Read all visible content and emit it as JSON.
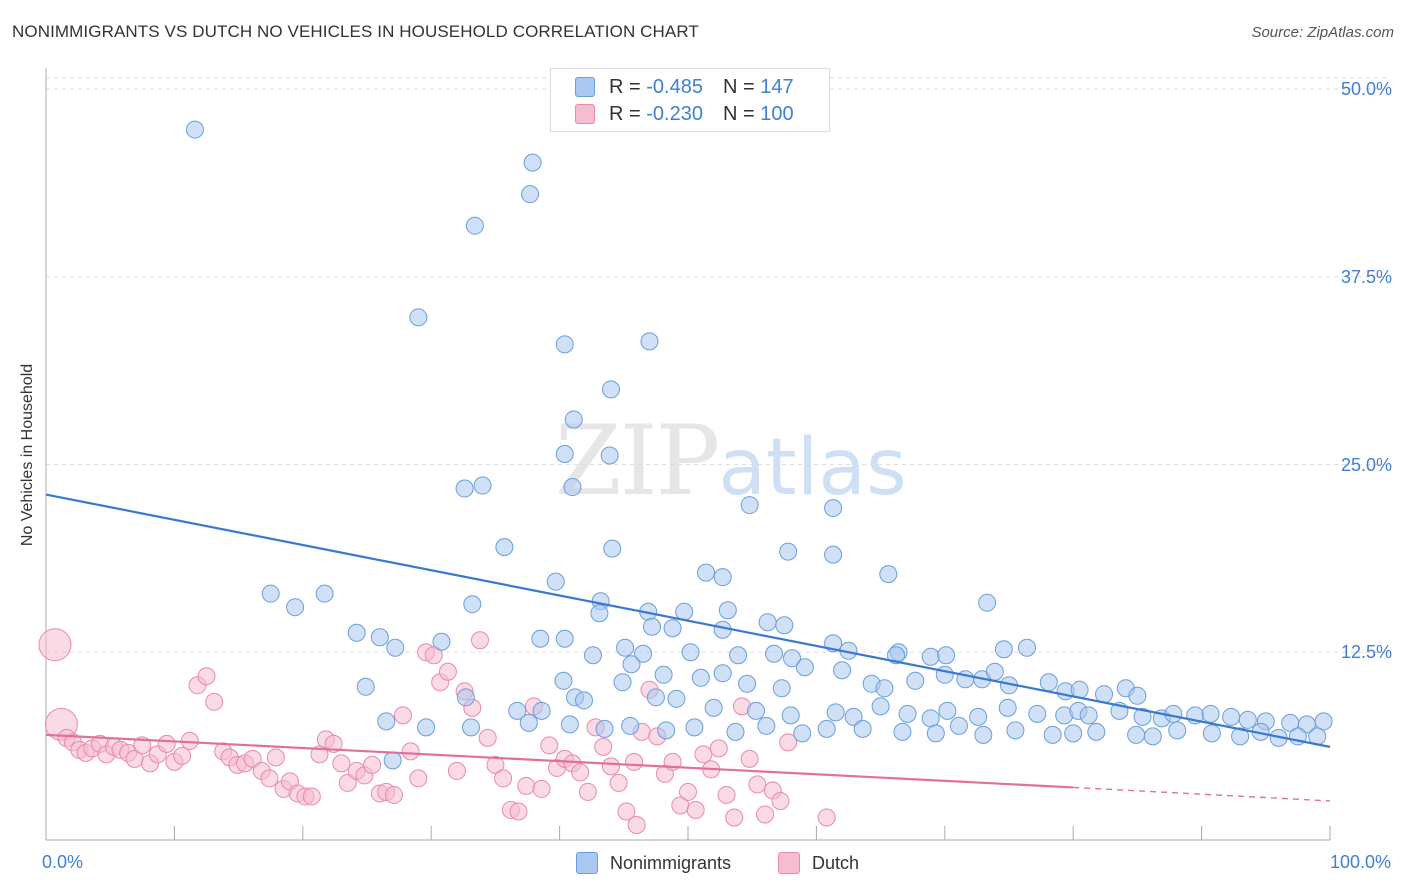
{
  "title": "NONIMMIGRANTS VS DUTCH NO VEHICLES IN HOUSEHOLD CORRELATION CHART",
  "source": "Source: ZipAtlas.com",
  "watermark": {
    "zip": "ZIP",
    "atlas": "atlas"
  },
  "legend_top": [
    {
      "r_label": "R = ",
      "r_value": "-0.485",
      "n_label": "N = ",
      "n_value": "147"
    },
    {
      "r_label": "R = ",
      "r_value": "-0.230",
      "n_label": "N = ",
      "n_value": "100"
    }
  ],
  "colors": {
    "blue_fill": "#aac8f0",
    "blue_stroke": "#6a9edc",
    "blue_line": "#3a78d0",
    "pink_fill": "#f6bcd0",
    "pink_stroke": "#e98aaa",
    "pink_line": "#e0709a",
    "grid": "#dddddd",
    "tick_text": "#3f7fd4"
  },
  "chart_data": {
    "type": "scatter",
    "title": "NONIMMIGRANTS VS DUTCH NO VEHICLES IN HOUSEHOLD CORRELATION CHART",
    "xlabel": "",
    "ylabel": "No Vehicles in Household",
    "xlim": [
      0,
      100
    ],
    "ylim": [
      0,
      51
    ],
    "x_tick_labels": [
      "0.0%",
      "100.0%"
    ],
    "y_ticks": [
      12.5,
      25.0,
      37.5,
      50.0
    ],
    "y_tick_labels": [
      "12.5%",
      "25.0%",
      "37.5%",
      "50.0%"
    ],
    "grid": true,
    "legend_position": "top-center",
    "series": [
      {
        "name": "Nonimmigrants",
        "color": "#aac8f0",
        "trend": {
          "x": [
            0,
            100
          ],
          "y": [
            23.0,
            6.2
          ]
        },
        "points": [
          [
            11.6,
            47.3
          ],
          [
            37.9,
            45.1
          ],
          [
            37.7,
            43.0
          ],
          [
            33.4,
            40.9
          ],
          [
            29.0,
            34.8
          ],
          [
            40.4,
            33.0
          ],
          [
            47.0,
            33.2
          ],
          [
            44.0,
            30.0
          ],
          [
            41.1,
            28.0
          ],
          [
            43.9,
            25.6
          ],
          [
            40.4,
            25.7
          ],
          [
            41.0,
            23.5
          ],
          [
            34.0,
            23.6
          ],
          [
            32.6,
            23.4
          ],
          [
            54.8,
            22.3
          ],
          [
            61.3,
            22.1
          ],
          [
            35.7,
            19.5
          ],
          [
            44.1,
            19.4
          ],
          [
            57.8,
            19.2
          ],
          [
            61.3,
            19.0
          ],
          [
            52.7,
            17.5
          ],
          [
            51.4,
            17.8
          ],
          [
            65.6,
            17.7
          ],
          [
            39.7,
            17.2
          ],
          [
            17.5,
            16.4
          ],
          [
            21.7,
            16.4
          ],
          [
            43.2,
            15.9
          ],
          [
            33.2,
            15.7
          ],
          [
            19.4,
            15.5
          ],
          [
            46.9,
            15.2
          ],
          [
            43.1,
            15.1
          ],
          [
            49.7,
            15.2
          ],
          [
            53.1,
            15.3
          ],
          [
            73.3,
            15.8
          ],
          [
            47.2,
            14.2
          ],
          [
            48.8,
            14.1
          ],
          [
            52.7,
            14.0
          ],
          [
            56.2,
            14.5
          ],
          [
            57.5,
            14.3
          ],
          [
            24.2,
            13.8
          ],
          [
            26.0,
            13.5
          ],
          [
            30.8,
            13.2
          ],
          [
            38.5,
            13.4
          ],
          [
            40.4,
            13.4
          ],
          [
            46.5,
            12.4
          ],
          [
            42.6,
            12.3
          ],
          [
            45.1,
            12.8
          ],
          [
            50.2,
            12.5
          ],
          [
            53.9,
            12.3
          ],
          [
            56.7,
            12.4
          ],
          [
            58.1,
            12.1
          ],
          [
            61.3,
            13.1
          ],
          [
            62.5,
            12.6
          ],
          [
            66.4,
            12.5
          ],
          [
            66.2,
            12.3
          ],
          [
            68.9,
            12.2
          ],
          [
            70.1,
            12.3
          ],
          [
            74.6,
            12.7
          ],
          [
            76.4,
            12.8
          ],
          [
            27.2,
            12.8
          ],
          [
            24.9,
            10.2
          ],
          [
            40.3,
            10.6
          ],
          [
            41.2,
            9.5
          ],
          [
            44.9,
            10.5
          ],
          [
            45.6,
            11.7
          ],
          [
            48.1,
            11.0
          ],
          [
            51.0,
            10.8
          ],
          [
            52.7,
            11.1
          ],
          [
            54.6,
            10.4
          ],
          [
            57.3,
            10.1
          ],
          [
            59.1,
            11.5
          ],
          [
            62.0,
            11.3
          ],
          [
            64.3,
            10.4
          ],
          [
            65.3,
            10.1
          ],
          [
            67.7,
            10.6
          ],
          [
            70.0,
            11.0
          ],
          [
            71.6,
            10.7
          ],
          [
            72.9,
            10.7
          ],
          [
            73.9,
            11.2
          ],
          [
            75.0,
            10.3
          ],
          [
            78.1,
            10.5
          ],
          [
            79.4,
            9.9
          ],
          [
            80.5,
            10.0
          ],
          [
            82.4,
            9.7
          ],
          [
            84.1,
            10.1
          ],
          [
            85.0,
            9.6
          ],
          [
            32.7,
            9.5
          ],
          [
            36.7,
            8.6
          ],
          [
            38.6,
            8.6
          ],
          [
            41.9,
            9.3
          ],
          [
            47.5,
            9.5
          ],
          [
            49.1,
            9.4
          ],
          [
            52.0,
            8.8
          ],
          [
            55.3,
            8.6
          ],
          [
            58.0,
            8.3
          ],
          [
            61.5,
            8.5
          ],
          [
            62.9,
            8.2
          ],
          [
            65.0,
            8.9
          ],
          [
            67.1,
            8.4
          ],
          [
            68.9,
            8.1
          ],
          [
            70.2,
            8.6
          ],
          [
            72.6,
            8.2
          ],
          [
            74.9,
            8.8
          ],
          [
            77.2,
            8.4
          ],
          [
            79.3,
            8.3
          ],
          [
            80.4,
            8.6
          ],
          [
            81.2,
            8.3
          ],
          [
            83.6,
            8.6
          ],
          [
            85.4,
            8.2
          ],
          [
            86.9,
            8.1
          ],
          [
            87.8,
            8.4
          ],
          [
            89.5,
            8.3
          ],
          [
            90.7,
            8.4
          ],
          [
            92.3,
            8.2
          ],
          [
            93.6,
            8.0
          ],
          [
            95.0,
            7.9
          ],
          [
            96.9,
            7.8
          ],
          [
            98.2,
            7.7
          ],
          [
            99.5,
            7.9
          ],
          [
            26.5,
            7.9
          ],
          [
            29.6,
            7.5
          ],
          [
            33.1,
            7.5
          ],
          [
            37.6,
            7.8
          ],
          [
            40.8,
            7.7
          ],
          [
            43.5,
            7.4
          ],
          [
            45.5,
            7.6
          ],
          [
            48.3,
            7.3
          ],
          [
            50.5,
            7.5
          ],
          [
            53.7,
            7.2
          ],
          [
            56.1,
            7.6
          ],
          [
            58.9,
            7.1
          ],
          [
            60.8,
            7.4
          ],
          [
            63.6,
            7.4
          ],
          [
            66.7,
            7.2
          ],
          [
            69.3,
            7.1
          ],
          [
            71.1,
            7.6
          ],
          [
            73.0,
            7.0
          ],
          [
            75.5,
            7.3
          ],
          [
            78.4,
            7.0
          ],
          [
            80.0,
            7.1
          ],
          [
            81.8,
            7.2
          ],
          [
            84.9,
            7.0
          ],
          [
            86.2,
            6.9
          ],
          [
            88.1,
            7.3
          ],
          [
            90.8,
            7.1
          ],
          [
            93.0,
            6.9
          ],
          [
            94.6,
            7.2
          ],
          [
            96.0,
            6.8
          ],
          [
            97.5,
            6.9
          ],
          [
            99.0,
            6.9
          ],
          [
            27.0,
            5.3
          ]
        ]
      },
      {
        "name": "Dutch",
        "color": "#f6bcd0",
        "trend": {
          "x": [
            0,
            80
          ],
          "y": [
            7.0,
            3.5
          ],
          "dashed_extension": {
            "x": [
              80,
              100
            ],
            "y": [
              3.5,
              2.6
            ]
          }
        },
        "points": [
          [
            0.7,
            13.0
          ],
          [
            1.2,
            7.7
          ],
          [
            1.6,
            6.8
          ],
          [
            2.1,
            6.5
          ],
          [
            2.6,
            6.0
          ],
          [
            3.1,
            5.8
          ],
          [
            3.6,
            6.1
          ],
          [
            4.2,
            6.4
          ],
          [
            4.7,
            5.7
          ],
          [
            5.3,
            6.2
          ],
          [
            5.8,
            6.0
          ],
          [
            6.4,
            5.8
          ],
          [
            6.9,
            5.4
          ],
          [
            7.5,
            6.3
          ],
          [
            8.1,
            5.1
          ],
          [
            8.7,
            5.7
          ],
          [
            9.4,
            6.4
          ],
          [
            10.0,
            5.2
          ],
          [
            10.6,
            5.6
          ],
          [
            11.2,
            6.6
          ],
          [
            11.8,
            10.3
          ],
          [
            12.5,
            10.9
          ],
          [
            13.1,
            9.2
          ],
          [
            13.8,
            5.9
          ],
          [
            14.3,
            5.5
          ],
          [
            14.9,
            5.0
          ],
          [
            15.5,
            5.1
          ],
          [
            16.1,
            5.4
          ],
          [
            16.8,
            4.6
          ],
          [
            17.4,
            4.1
          ],
          [
            17.9,
            5.5
          ],
          [
            18.5,
            3.4
          ],
          [
            19.0,
            3.9
          ],
          [
            19.6,
            3.1
          ],
          [
            20.2,
            2.9
          ],
          [
            20.7,
            2.9
          ],
          [
            21.3,
            5.7
          ],
          [
            21.8,
            6.7
          ],
          [
            22.4,
            6.4
          ],
          [
            23.0,
            5.1
          ],
          [
            23.5,
            3.8
          ],
          [
            24.2,
            4.6
          ],
          [
            24.8,
            4.3
          ],
          [
            25.4,
            5.0
          ],
          [
            26.0,
            3.1
          ],
          [
            26.5,
            3.2
          ],
          [
            27.1,
            3.0
          ],
          [
            27.8,
            8.3
          ],
          [
            28.4,
            5.9
          ],
          [
            29.0,
            4.1
          ],
          [
            29.6,
            12.5
          ],
          [
            30.2,
            12.3
          ],
          [
            30.7,
            10.5
          ],
          [
            31.3,
            11.2
          ],
          [
            32.0,
            4.6
          ],
          [
            32.6,
            9.9
          ],
          [
            33.2,
            8.8
          ],
          [
            33.8,
            13.3
          ],
          [
            34.4,
            6.8
          ],
          [
            35.0,
            5.0
          ],
          [
            35.6,
            4.1
          ],
          [
            36.2,
            2.0
          ],
          [
            36.8,
            1.9
          ],
          [
            37.4,
            3.6
          ],
          [
            38.0,
            8.9
          ],
          [
            38.6,
            3.4
          ],
          [
            39.2,
            6.3
          ],
          [
            39.8,
            4.8
          ],
          [
            40.4,
            5.4
          ],
          [
            41.0,
            5.1
          ],
          [
            41.6,
            4.5
          ],
          [
            42.2,
            3.2
          ],
          [
            42.8,
            7.5
          ],
          [
            43.4,
            6.2
          ],
          [
            44.0,
            4.9
          ],
          [
            44.6,
            3.8
          ],
          [
            45.2,
            1.9
          ],
          [
            45.8,
            5.2
          ],
          [
            46.4,
            7.2
          ],
          [
            47.0,
            10.0
          ],
          [
            47.6,
            6.9
          ],
          [
            48.2,
            4.4
          ],
          [
            48.8,
            5.2
          ],
          [
            49.4,
            2.3
          ],
          [
            50.0,
            3.2
          ],
          [
            50.6,
            2.0
          ],
          [
            51.2,
            5.7
          ],
          [
            51.8,
            4.7
          ],
          [
            52.4,
            6.1
          ],
          [
            53.0,
            3.0
          ],
          [
            53.6,
            1.5
          ],
          [
            54.2,
            8.9
          ],
          [
            54.8,
            5.4
          ],
          [
            55.4,
            3.7
          ],
          [
            56.0,
            1.7
          ],
          [
            56.6,
            3.3
          ],
          [
            57.2,
            2.6
          ],
          [
            57.8,
            6.5
          ],
          [
            60.8,
            1.5
          ],
          [
            46.0,
            1.0
          ]
        ],
        "point_sizes_note": "two large markers near x=0.7"
      }
    ]
  },
  "xtick_left": "0.0%",
  "xtick_right": "100.0%",
  "legend_bottom": [
    {
      "label": "Nonimmigrants"
    },
    {
      "label": "Dutch"
    }
  ]
}
